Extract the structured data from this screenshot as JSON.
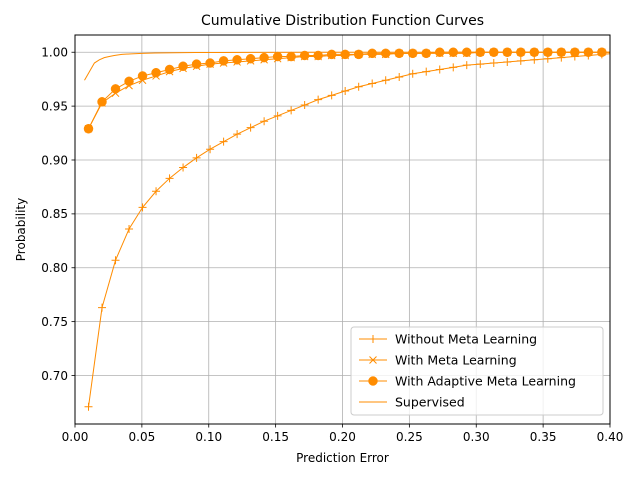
{
  "chart_data": {
    "type": "line",
    "title": "Cumulative Distribution Function Curves",
    "xlabel": "Prediction Error",
    "ylabel": "Probability",
    "xlim": [
      0.0,
      0.4
    ],
    "ylim": [
      0.655,
      1.016
    ],
    "xticks": [
      0.0,
      0.05,
      0.1,
      0.15,
      0.2,
      0.25,
      0.3,
      0.35,
      0.4
    ],
    "xtick_labels": [
      "0.00",
      "0.05",
      "0.10",
      "0.15",
      "0.20",
      "0.25",
      "0.30",
      "0.35",
      "0.40"
    ],
    "yticks": [
      0.7,
      0.75,
      0.8,
      0.85,
      0.9,
      0.95,
      1.0
    ],
    "ytick_labels": [
      "0.70",
      "0.75",
      "0.80",
      "0.85",
      "0.90",
      "0.95",
      "1.00"
    ],
    "grid": true,
    "legend_position": "lower-right",
    "color": "#ff8c00",
    "series": [
      {
        "name": "Without Meta Learning",
        "marker": "plus",
        "x": [
          0.0101,
          0.0202,
          0.0303,
          0.0404,
          0.0505,
          0.0606,
          0.0707,
          0.0808,
          0.0909,
          0.101,
          0.1111,
          0.1212,
          0.1313,
          0.1414,
          0.1515,
          0.1616,
          0.1717,
          0.1818,
          0.1919,
          0.202,
          0.2121,
          0.2222,
          0.2323,
          0.2424,
          0.2525,
          0.2626,
          0.2727,
          0.2828,
          0.2929,
          0.303,
          0.3131,
          0.3232,
          0.3333,
          0.3434,
          0.3535,
          0.3636,
          0.3737,
          0.3838,
          0.3939,
          0.404
        ],
        "y": [
          0.671,
          0.763,
          0.807,
          0.836,
          0.856,
          0.871,
          0.883,
          0.893,
          0.902,
          0.91,
          0.917,
          0.924,
          0.93,
          0.936,
          0.941,
          0.946,
          0.951,
          0.956,
          0.96,
          0.964,
          0.968,
          0.971,
          0.974,
          0.977,
          0.98,
          0.982,
          0.984,
          0.986,
          0.988,
          0.989,
          0.99,
          0.991,
          0.992,
          0.993,
          0.994,
          0.995,
          0.996,
          0.997,
          0.998,
          0.999
        ]
      },
      {
        "name": "With Meta Learning",
        "marker": "x",
        "x": [
          0.0101,
          0.0202,
          0.0303,
          0.0404,
          0.0505,
          0.0606,
          0.0707,
          0.0808,
          0.0909,
          0.101,
          0.1111,
          0.1212,
          0.1313,
          0.1414,
          0.1515,
          0.1616,
          0.1717,
          0.1818,
          0.1919,
          0.202,
          0.2121,
          0.2222,
          0.2323,
          0.2424,
          0.2525,
          0.2626,
          0.2727,
          0.2828,
          0.2929,
          0.303,
          0.3131,
          0.3232,
          0.3333,
          0.3434,
          0.3535,
          0.3636,
          0.3737,
          0.3838,
          0.3939,
          0.404
        ],
        "y": [
          0.929,
          0.953,
          0.962,
          0.969,
          0.974,
          0.978,
          0.982,
          0.985,
          0.987,
          0.989,
          0.99,
          0.991,
          0.992,
          0.993,
          0.994,
          0.995,
          0.996,
          0.996,
          0.997,
          0.997,
          0.998,
          0.998,
          0.998,
          0.999,
          0.999,
          0.999,
          0.999,
          0.999,
          0.999,
          1.0,
          1.0,
          1.0,
          1.0,
          1.0,
          1.0,
          1.0,
          1.0,
          1.0,
          1.0,
          1.0
        ]
      },
      {
        "name": "With Adaptive Meta Learning",
        "marker": "circle",
        "x": [
          0.0101,
          0.0202,
          0.0303,
          0.0404,
          0.0505,
          0.0606,
          0.0707,
          0.0808,
          0.0909,
          0.101,
          0.1111,
          0.1212,
          0.1313,
          0.1414,
          0.1515,
          0.1616,
          0.1717,
          0.1818,
          0.1919,
          0.202,
          0.2121,
          0.2222,
          0.2323,
          0.2424,
          0.2525,
          0.2626,
          0.2727,
          0.2828,
          0.2929,
          0.303,
          0.3131,
          0.3232,
          0.3333,
          0.3434,
          0.3535,
          0.3636,
          0.3737,
          0.3838,
          0.3939,
          0.404
        ],
        "y": [
          0.929,
          0.954,
          0.966,
          0.973,
          0.978,
          0.981,
          0.984,
          0.987,
          0.989,
          0.99,
          0.992,
          0.993,
          0.994,
          0.995,
          0.996,
          0.996,
          0.997,
          0.997,
          0.998,
          0.998,
          0.998,
          0.999,
          0.999,
          0.999,
          0.999,
          0.999,
          1.0,
          1.0,
          1.0,
          1.0,
          1.0,
          1.0,
          1.0,
          1.0,
          1.0,
          1.0,
          1.0,
          1.0,
          1.0,
          1.0
        ]
      },
      {
        "name": "Supervised",
        "marker": "none",
        "x": [
          0.0071,
          0.0108,
          0.0145,
          0.0182,
          0.0219,
          0.0256,
          0.0293,
          0.035,
          0.042,
          0.05,
          0.06,
          0.075,
          0.09,
          0.11,
          0.14,
          0.18,
          0.25,
          0.32,
          0.404
        ],
        "y": [
          0.974,
          0.982,
          0.99,
          0.993,
          0.995,
          0.996,
          0.997,
          0.998,
          0.9985,
          0.999,
          0.9993,
          0.9995,
          0.9997,
          0.9998,
          0.9999,
          1.0,
          1.0,
          1.0,
          1.0
        ]
      }
    ]
  }
}
